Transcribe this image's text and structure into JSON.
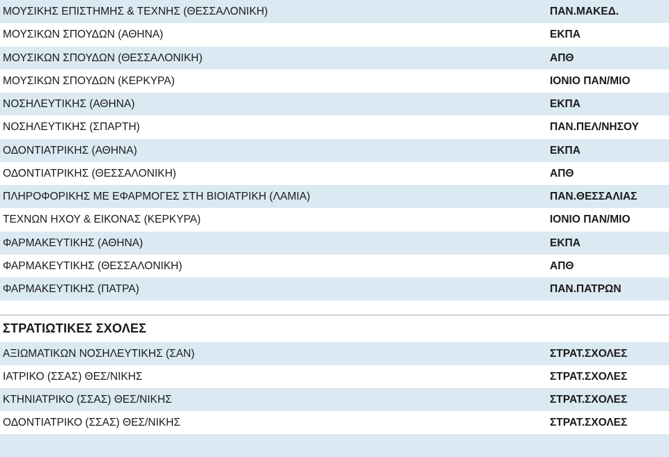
{
  "rows": [
    {
      "dept": "ΜΟΥΣΙΚΗΣ ΕΠΙΣΤΗΜΗΣ & ΤΕΧΝΗΣ (ΘΕΣΣΑΛΟΝΙΚΗ)",
      "uni": "ΠΑΝ.ΜΑΚΕΔ."
    },
    {
      "dept": "ΜΟΥΣΙΚΩΝ ΣΠΟΥΔΩΝ (ΑΘΗΝΑ)",
      "uni": "ΕΚΠΑ"
    },
    {
      "dept": "ΜΟΥΣΙΚΩΝ ΣΠΟΥΔΩΝ (ΘΕΣΣΑΛΟΝΙΚΗ)",
      "uni": "ΑΠΘ"
    },
    {
      "dept": "ΜΟΥΣΙΚΩΝ ΣΠΟΥΔΩΝ (ΚΕΡΚΥΡΑ)",
      "uni": "ΙΟΝΙΟ ΠΑΝ/ΜΙΟ"
    },
    {
      "dept": "ΝΟΣΗΛΕΥΤΙΚΗΣ (ΑΘΗΝΑ)",
      "uni": "ΕΚΠΑ"
    },
    {
      "dept": "ΝΟΣΗΛΕΥΤΙΚΗΣ (ΣΠΑΡΤΗ)",
      "uni": "ΠΑΝ.ΠΕΛ/ΝΗΣΟΥ"
    },
    {
      "dept": "ΟΔΟΝΤΙΑΤΡΙΚΗΣ (ΑΘΗΝΑ)",
      "uni": "ΕΚΠΑ"
    },
    {
      "dept": "ΟΔΟΝΤΙΑΤΡΙΚΗΣ (ΘΕΣΣΑΛΟΝΙΚΗ)",
      "uni": "ΑΠΘ"
    },
    {
      "dept": "ΠΛΗΡΟΦΟΡΙΚΗΣ ΜΕ ΕΦΑΡΜΟΓΕΣ ΣΤΗ ΒΙΟΙΑΤΡΙΚΗ (ΛΑΜΙΑ)",
      "uni": "ΠΑΝ.ΘΕΣΣΑΛΙΑΣ"
    },
    {
      "dept": "ΤΕΧΝΩΝ ΗΧΟΥ & ΕΙΚΟΝΑΣ (ΚΕΡΚΥΡΑ)",
      "uni": "ΙΟΝΙΟ ΠΑΝ/ΜΙΟ"
    },
    {
      "dept": "ΦΑΡΜΑΚΕΥΤΙΚΗΣ (ΑΘΗΝΑ)",
      "uni": "ΕΚΠΑ"
    },
    {
      "dept": "ΦΑΡΜΑΚΕΥΤΙΚΗΣ (ΘΕΣΣΑΛΟΝΙΚΗ)",
      "uni": "ΑΠΘ"
    },
    {
      "dept": "ΦΑΡΜΑΚΕΥΤΙΚΗΣ (ΠΑΤΡΑ)",
      "uni": "ΠΑΝ.ΠΑΤΡΩΝ"
    }
  ],
  "military": {
    "heading": "ΣΤΡΑΤΙΩΤΙΚΕΣ ΣΧΟΛΕΣ",
    "rows": [
      {
        "dept": "ΑΞΙΩΜΑΤΙΚΩΝ ΝΟΣΗΛΕΥΤΙΚΗΣ (ΣΑΝ)",
        "uni": "ΣΤΡΑΤ.ΣΧΟΛΕΣ"
      },
      {
        "dept": "ΙΑΤΡΙΚΟ (ΣΣΑΣ) ΘΕΣ/ΝΙΚΗΣ",
        "uni": "ΣΤΡΑΤ.ΣΧΟΛΕΣ"
      },
      {
        "dept": "ΚΤΗΝΙΑΤΡΙΚΟ (ΣΣΑΣ) ΘΕΣ/ΝΙΚΗΣ",
        "uni": "ΣΤΡΑΤ.ΣΧΟΛΕΣ"
      },
      {
        "dept": "ΟΔΟΝΤΙΑΤΡΙΚΟ (ΣΣΑΣ) ΘΕΣ/ΝΙΚΗΣ",
        "uni": "ΣΤΡΑΤ.ΣΧΟΛΕΣ"
      }
    ]
  },
  "colors": {
    "row_shade": "#dbe9f2",
    "text": "#1a1a1a"
  }
}
